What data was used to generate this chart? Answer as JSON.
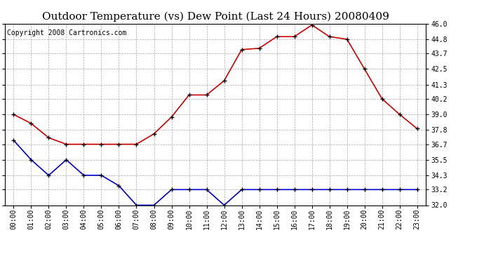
{
  "title": "Outdoor Temperature (vs) Dew Point (Last 24 Hours) 20080409",
  "copyright": "Copyright 2008 Cartronics.com",
  "x_labels": [
    "00:00",
    "01:00",
    "02:00",
    "03:00",
    "04:00",
    "05:00",
    "06:00",
    "07:00",
    "08:00",
    "09:00",
    "10:00",
    "11:00",
    "12:00",
    "13:00",
    "14:00",
    "15:00",
    "16:00",
    "17:00",
    "18:00",
    "19:00",
    "20:00",
    "21:00",
    "22:00",
    "23:00"
  ],
  "temp_data": [
    39.0,
    38.3,
    37.2,
    36.7,
    36.7,
    36.7,
    36.7,
    36.7,
    37.5,
    38.8,
    40.5,
    40.5,
    41.6,
    44.0,
    44.1,
    45.0,
    45.0,
    45.9,
    45.0,
    44.8,
    42.5,
    40.2,
    39.0,
    37.9
  ],
  "dew_data": [
    37.0,
    35.5,
    34.3,
    35.5,
    34.3,
    34.3,
    33.5,
    32.0,
    32.0,
    33.2,
    33.2,
    33.2,
    32.0,
    33.2,
    33.2,
    33.2,
    33.2,
    33.2,
    33.2,
    33.2,
    33.2,
    33.2,
    33.2,
    33.2
  ],
  "temp_color": "#cc0000",
  "dew_color": "#0000cc",
  "bg_color": "#ffffff",
  "grid_color": "#aaaaaa",
  "ylim": [
    32.0,
    46.0
  ],
  "yticks": [
    32.0,
    33.2,
    34.3,
    35.5,
    36.7,
    37.8,
    39.0,
    40.2,
    41.3,
    42.5,
    43.7,
    44.8,
    46.0
  ],
  "title_fontsize": 11,
  "copyright_fontsize": 7,
  "tick_fontsize": 7
}
